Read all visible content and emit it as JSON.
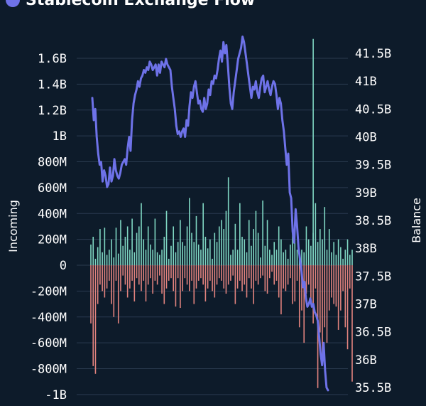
{
  "title": "Stablecoin Exchange Flow",
  "colors": {
    "background": "#0d1b2a",
    "grid": "#2a3b4f",
    "incoming": "#7fd6c2",
    "outgoing": "#e2837e",
    "balance": "#6e72e8",
    "spike": "#7fd6c2"
  },
  "chart_data": {
    "type": "bar+line",
    "title": "Stablecoin Exchange Flow",
    "grid": true,
    "left_axis": {
      "label": "Incoming",
      "min": -1.0,
      "max": 1.75,
      "unit": "B",
      "ticks": [
        1.6,
        1.4,
        1.2,
        1.0,
        0.8,
        0.6,
        0.4,
        0.2,
        0,
        -0.2,
        -0.4,
        -0.6,
        -0.8,
        -1.0
      ],
      "tick_labels": [
        "1.6B",
        "1.4B",
        "1.2B",
        "1B",
        "800M",
        "600M",
        "400M",
        "200M",
        "0",
        "-200M",
        "-400M",
        "-600M",
        "-800M",
        "-1B"
      ]
    },
    "right_axis": {
      "label": "Balance",
      "min": 35.5,
      "max": 41.7,
      "unit": "B",
      "ticks": [
        41.5,
        41,
        40.5,
        40,
        39.5,
        39,
        38.5,
        38,
        37.5,
        37,
        36.5,
        36,
        35.5
      ],
      "tick_labels": [
        "41.5B",
        "41B",
        "40.5B",
        "40B",
        "39.5B",
        "39B",
        "38.5B",
        "38B",
        "37.5B",
        "37B",
        "36.5B",
        "36B",
        "35.5B"
      ]
    },
    "incoming": [
      0.16,
      0.22,
      0.05,
      0.14,
      0.28,
      0.1,
      0.29,
      0.08,
      0.12,
      0.2,
      0.06,
      0.29,
      0.09,
      0.35,
      0.15,
      0.22,
      0.3,
      0.12,
      0.36,
      0.1,
      0.25,
      0.3,
      0.48,
      0.2,
      0.12,
      0.3,
      0.16,
      0.12,
      0.36,
      0.1,
      0.08,
      0.12,
      0.22,
      0.42,
      0.05,
      0.15,
      0.3,
      0.1,
      0.18,
      0.35,
      0.18,
      0.15,
      0.3,
      0.52,
      0.25,
      0.18,
      0.38,
      0.16,
      0.12,
      0.48,
      0.22,
      0.13,
      0.2,
      0.05,
      0.25,
      0.18,
      0.3,
      0.35,
      0.28,
      0.42,
      0.68,
      0.08,
      0.12,
      0.32,
      0.12,
      0.48,
      0.22,
      0.2,
      0.1,
      0.35,
      0.15,
      0.28,
      0.42,
      0.25,
      0.06,
      0.5,
      0.15,
      0.35,
      0.12,
      0.08,
      0.18,
      0.12,
      0.3,
      0.2,
      0.1,
      0.12,
      0.05,
      0.16,
      0.35,
      0.3,
      0.12,
      0.06,
      0.12,
      0.1,
      0.3,
      0.2,
      0.15,
      0.25,
      0.48,
      0.18,
      0.28,
      0.2,
      0.45,
      0.12,
      0.28,
      0.1,
      0.18,
      0.08,
      0.2,
      0.14,
      0.05,
      0.12,
      0.2,
      0.08,
      0.12
    ],
    "outgoing": [
      -0.45,
      -0.78,
      -0.84,
      -0.3,
      -0.15,
      -0.2,
      -0.25,
      -0.18,
      -0.12,
      -0.3,
      -0.4,
      -0.12,
      -0.45,
      -0.2,
      -0.08,
      -0.15,
      -0.25,
      -0.18,
      -0.12,
      -0.28,
      -0.1,
      -0.15,
      -0.2,
      -0.12,
      -0.28,
      -0.15,
      -0.1,
      -0.22,
      -0.12,
      -0.15,
      -0.08,
      -0.22,
      -0.3,
      -0.18,
      -0.12,
      -0.1,
      -0.2,
      -0.32,
      -0.1,
      -0.33,
      -0.2,
      -0.1,
      -0.15,
      -0.2,
      -0.12,
      -0.3,
      -0.18,
      -0.12,
      -0.1,
      -0.15,
      -0.28,
      -0.18,
      -0.12,
      -0.2,
      -0.25,
      -0.15,
      -0.1,
      -0.12,
      -0.18,
      -0.22,
      -0.15,
      -0.12,
      -0.08,
      -0.3,
      -0.18,
      -0.12,
      -0.2,
      -0.15,
      -0.25,
      -0.1,
      -0.18,
      -0.3,
      -0.12,
      -0.15,
      -0.1,
      -0.08,
      -0.2,
      -0.22,
      -0.1,
      -0.05,
      -0.15,
      -0.12,
      -0.25,
      -0.38,
      -0.18,
      -0.2,
      -0.15,
      -0.1,
      -0.3,
      -0.28,
      -0.12,
      -0.48,
      -0.35,
      -0.6,
      -0.22,
      -0.15,
      -0.3,
      -0.45,
      -0.18,
      -0.95,
      -0.52,
      -0.72,
      -0.48,
      -0.6,
      -0.35,
      -0.25,
      -0.3,
      -0.32,
      -0.5,
      -0.35,
      -0.2,
      -0.48,
      -0.65,
      -0.18,
      -0.9
    ],
    "balance": [
      40.7,
      40.3,
      40.5,
      40.0,
      39.7,
      39.5,
      39.55,
      39.2,
      39.4,
      39.3,
      39.1,
      39.15,
      39.45,
      39.2,
      39.3,
      39.6,
      39.4,
      39.3,
      39.25,
      39.35,
      39.5,
      39.55,
      39.6,
      39.5,
      39.8,
      40.0,
      39.75,
      40.3,
      40.6,
      40.75,
      40.85,
      41.0,
      40.9,
      41.05,
      41.1,
      41.2,
      41.15,
      41.25,
      41.2,
      41.35,
      41.3,
      41.2,
      41.25,
      41.3,
      41.1,
      41.3,
      41.15,
      41.35,
      41.3,
      41.25,
      41.4,
      41.3,
      41.25,
      41.2,
      40.9,
      40.7,
      40.5,
      40.2,
      40.05,
      40.1,
      40.0,
      40.1,
      40.15,
      40.0,
      40.3,
      40.2,
      40.55,
      40.8,
      40.7,
      40.9,
      41.0,
      40.8,
      40.6,
      40.65,
      40.5,
      40.45,
      40.7,
      40.5,
      40.6,
      40.85,
      40.75,
      41.0,
      40.95,
      41.1,
      41.05,
      41.2,
      41.4,
      41.55,
      41.35,
      41.7,
      41.5,
      41.65,
      41.3,
      40.9,
      40.6,
      40.5,
      40.8,
      41.0,
      41.2,
      41.4,
      41.5,
      41.6,
      41.8,
      41.7,
      41.5,
      41.3,
      41.1,
      40.9,
      40.7,
      40.9,
      40.85,
      41.0,
      40.8,
      40.7,
      40.9,
      41.05,
      41.1,
      40.8,
      40.9,
      41.0,
      40.85,
      40.75,
      40.9,
      41.0,
      40.95,
      40.75,
      40.5,
      40.7,
      40.6,
      40.3,
      40.1,
      39.8,
      39.5,
      39.7,
      39.0,
      38.9,
      38.3,
      38.1,
      38.7,
      38.4,
      38.0,
      37.8,
      37.6,
      37.3,
      37.4,
      37.1,
      36.95,
      37.0,
      37.1,
      36.95,
      37.0,
      36.85,
      36.8,
      36.7,
      36.4,
      36.1,
      35.9,
      36.3,
      35.8,
      35.5,
      35.45
    ],
    "spike": {
      "index": 97,
      "value": 1.75
    }
  }
}
